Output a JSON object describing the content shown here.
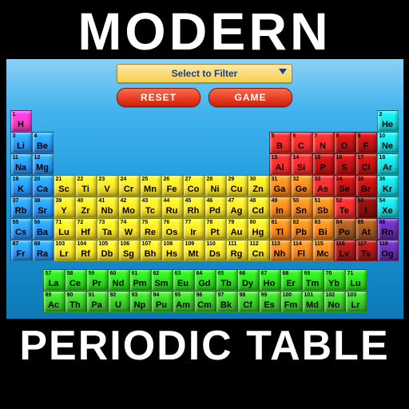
{
  "title_top": "MODERN",
  "title_bottom": "PERIODIC TABLE",
  "controls": {
    "filter_placeholder": "Select to Filter",
    "reset_label": "RESET",
    "game_label": "GAME"
  },
  "colors": {
    "magenta": "#ff39c9",
    "cyan": "#18dfe4",
    "blue": "#2b9bff",
    "yellow": "#ffea28",
    "orange": "#ff8a1f",
    "red": "#ff2d2d",
    "darkred": "#c41313",
    "maroon": "#8a0f0f",
    "brown": "#a55a1e",
    "deepred": "#b01818",
    "green": "#2fe41f",
    "green2": "#3dcf2a",
    "purple": "#6a2fb3"
  },
  "main_grid": {
    "cols": 18,
    "rows": 7,
    "cells": [
      {
        "r": 0,
        "c": 0,
        "n": 1,
        "s": "H",
        "k": "magenta"
      },
      {
        "r": 0,
        "c": 17,
        "n": 2,
        "s": "He",
        "k": "cyan"
      },
      {
        "r": 1,
        "c": 0,
        "n": 3,
        "s": "Li",
        "k": "blue"
      },
      {
        "r": 1,
        "c": 1,
        "n": 4,
        "s": "Be",
        "k": "blue"
      },
      {
        "r": 1,
        "c": 12,
        "n": 5,
        "s": "B",
        "k": "red"
      },
      {
        "r": 1,
        "c": 13,
        "n": 6,
        "s": "C",
        "k": "red"
      },
      {
        "r": 1,
        "c": 14,
        "n": 7,
        "s": "N",
        "k": "red"
      },
      {
        "r": 1,
        "c": 15,
        "n": 8,
        "s": "O",
        "k": "darkred"
      },
      {
        "r": 1,
        "c": 16,
        "n": 9,
        "s": "F",
        "k": "darkred"
      },
      {
        "r": 1,
        "c": 17,
        "n": 10,
        "s": "Ne",
        "k": "cyan"
      },
      {
        "r": 2,
        "c": 0,
        "n": 11,
        "s": "Na",
        "k": "blue"
      },
      {
        "r": 2,
        "c": 1,
        "n": 12,
        "s": "Mg",
        "k": "blue"
      },
      {
        "r": 2,
        "c": 12,
        "n": 13,
        "s": "Al",
        "k": "red"
      },
      {
        "r": 2,
        "c": 13,
        "n": 14,
        "s": "Si",
        "k": "red"
      },
      {
        "r": 2,
        "c": 14,
        "n": 15,
        "s": "P",
        "k": "darkred"
      },
      {
        "r": 2,
        "c": 15,
        "n": 16,
        "s": "S",
        "k": "darkred"
      },
      {
        "r": 2,
        "c": 16,
        "n": 17,
        "s": "Cl",
        "k": "darkred"
      },
      {
        "r": 2,
        "c": 17,
        "n": 18,
        "s": "Ar",
        "k": "cyan"
      },
      {
        "r": 3,
        "c": 0,
        "n": 19,
        "s": "K",
        "k": "blue"
      },
      {
        "r": 3,
        "c": 1,
        "n": 20,
        "s": "Ca",
        "k": "blue"
      },
      {
        "r": 3,
        "c": 2,
        "n": 21,
        "s": "Sc",
        "k": "yellow"
      },
      {
        "r": 3,
        "c": 3,
        "n": 22,
        "s": "Ti",
        "k": "yellow"
      },
      {
        "r": 3,
        "c": 4,
        "n": 23,
        "s": "V",
        "k": "yellow"
      },
      {
        "r": 3,
        "c": 5,
        "n": 24,
        "s": "Cr",
        "k": "yellow"
      },
      {
        "r": 3,
        "c": 6,
        "n": 25,
        "s": "Mn",
        "k": "yellow"
      },
      {
        "r": 3,
        "c": 7,
        "n": 26,
        "s": "Fe",
        "k": "yellow"
      },
      {
        "r": 3,
        "c": 8,
        "n": 27,
        "s": "Co",
        "k": "yellow"
      },
      {
        "r": 3,
        "c": 9,
        "n": 28,
        "s": "Ni",
        "k": "yellow"
      },
      {
        "r": 3,
        "c": 10,
        "n": 29,
        "s": "Cu",
        "k": "yellow"
      },
      {
        "r": 3,
        "c": 11,
        "n": 30,
        "s": "Zn",
        "k": "yellow"
      },
      {
        "r": 3,
        "c": 12,
        "n": 31,
        "s": "Ga",
        "k": "orange"
      },
      {
        "r": 3,
        "c": 13,
        "n": 32,
        "s": "Ge",
        "k": "orange"
      },
      {
        "r": 3,
        "c": 14,
        "n": 33,
        "s": "As",
        "k": "red"
      },
      {
        "r": 3,
        "c": 15,
        "n": 34,
        "s": "Se",
        "k": "darkred"
      },
      {
        "r": 3,
        "c": 16,
        "n": 35,
        "s": "Br",
        "k": "darkred"
      },
      {
        "r": 3,
        "c": 17,
        "n": 36,
        "s": "Kr",
        "k": "cyan"
      },
      {
        "r": 4,
        "c": 0,
        "n": 37,
        "s": "Rb",
        "k": "blue"
      },
      {
        "r": 4,
        "c": 1,
        "n": 38,
        "s": "Sr",
        "k": "blue"
      },
      {
        "r": 4,
        "c": 2,
        "n": 39,
        "s": "Y",
        "k": "yellow"
      },
      {
        "r": 4,
        "c": 3,
        "n": 40,
        "s": "Zr",
        "k": "yellow"
      },
      {
        "r": 4,
        "c": 4,
        "n": 41,
        "s": "Nb",
        "k": "yellow"
      },
      {
        "r": 4,
        "c": 5,
        "n": 42,
        "s": "Mo",
        "k": "yellow"
      },
      {
        "r": 4,
        "c": 6,
        "n": 43,
        "s": "Tc",
        "k": "yellow"
      },
      {
        "r": 4,
        "c": 7,
        "n": 44,
        "s": "Ru",
        "k": "yellow"
      },
      {
        "r": 4,
        "c": 8,
        "n": 45,
        "s": "Rh",
        "k": "yellow"
      },
      {
        "r": 4,
        "c": 9,
        "n": 46,
        "s": "Pd",
        "k": "yellow"
      },
      {
        "r": 4,
        "c": 10,
        "n": 47,
        "s": "Ag",
        "k": "yellow"
      },
      {
        "r": 4,
        "c": 11,
        "n": 48,
        "s": "Cd",
        "k": "yellow"
      },
      {
        "r": 4,
        "c": 12,
        "n": 49,
        "s": "In",
        "k": "orange"
      },
      {
        "r": 4,
        "c": 13,
        "n": 50,
        "s": "Sn",
        "k": "orange"
      },
      {
        "r": 4,
        "c": 14,
        "n": 51,
        "s": "Sb",
        "k": "orange"
      },
      {
        "r": 4,
        "c": 15,
        "n": 52,
        "s": "Te",
        "k": "red"
      },
      {
        "r": 4,
        "c": 16,
        "n": 53,
        "s": "I",
        "k": "maroon"
      },
      {
        "r": 4,
        "c": 17,
        "n": 54,
        "s": "Xe",
        "k": "cyan"
      },
      {
        "r": 5,
        "c": 0,
        "n": 55,
        "s": "Cs",
        "k": "blue"
      },
      {
        "r": 5,
        "c": 1,
        "n": 56,
        "s": "Ba",
        "k": "blue"
      },
      {
        "r": 5,
        "c": 2,
        "n": 71,
        "s": "Lu",
        "k": "yellow"
      },
      {
        "r": 5,
        "c": 3,
        "n": 72,
        "s": "Hf",
        "k": "yellow"
      },
      {
        "r": 5,
        "c": 4,
        "n": 73,
        "s": "Ta",
        "k": "yellow"
      },
      {
        "r": 5,
        "c": 5,
        "n": 74,
        "s": "W",
        "k": "yellow"
      },
      {
        "r": 5,
        "c": 6,
        "n": 75,
        "s": "Re",
        "k": "yellow"
      },
      {
        "r": 5,
        "c": 7,
        "n": 76,
        "s": "Os",
        "k": "yellow"
      },
      {
        "r": 5,
        "c": 8,
        "n": 77,
        "s": "Ir",
        "k": "yellow"
      },
      {
        "r": 5,
        "c": 9,
        "n": 78,
        "s": "Pt",
        "k": "yellow"
      },
      {
        "r": 5,
        "c": 10,
        "n": 79,
        "s": "Au",
        "k": "yellow"
      },
      {
        "r": 5,
        "c": 11,
        "n": 80,
        "s": "Hg",
        "k": "yellow"
      },
      {
        "r": 5,
        "c": 12,
        "n": 81,
        "s": "Tl",
        "k": "orange"
      },
      {
        "r": 5,
        "c": 13,
        "n": 82,
        "s": "Pb",
        "k": "orange"
      },
      {
        "r": 5,
        "c": 14,
        "n": 83,
        "s": "Bi",
        "k": "orange"
      },
      {
        "r": 5,
        "c": 15,
        "n": 84,
        "s": "Po",
        "k": "brown"
      },
      {
        "r": 5,
        "c": 16,
        "n": 85,
        "s": "At",
        "k": "brown"
      },
      {
        "r": 5,
        "c": 17,
        "n": 86,
        "s": "Rn",
        "k": "purple"
      },
      {
        "r": 6,
        "c": 0,
        "n": 87,
        "s": "Fr",
        "k": "blue"
      },
      {
        "r": 6,
        "c": 1,
        "n": 88,
        "s": "Ra",
        "k": "blue"
      },
      {
        "r": 6,
        "c": 2,
        "n": 103,
        "s": "Lr",
        "k": "yellow"
      },
      {
        "r": 6,
        "c": 3,
        "n": 104,
        "s": "Rf",
        "k": "yellow"
      },
      {
        "r": 6,
        "c": 4,
        "n": 105,
        "s": "Db",
        "k": "yellow"
      },
      {
        "r": 6,
        "c": 5,
        "n": 106,
        "s": "Sg",
        "k": "yellow"
      },
      {
        "r": 6,
        "c": 6,
        "n": 107,
        "s": "Bh",
        "k": "yellow"
      },
      {
        "r": 6,
        "c": 7,
        "n": 108,
        "s": "Hs",
        "k": "yellow"
      },
      {
        "r": 6,
        "c": 8,
        "n": 109,
        "s": "Mt",
        "k": "yellow"
      },
      {
        "r": 6,
        "c": 9,
        "n": 110,
        "s": "Ds",
        "k": "yellow"
      },
      {
        "r": 6,
        "c": 10,
        "n": 111,
        "s": "Rg",
        "k": "yellow"
      },
      {
        "r": 6,
        "c": 11,
        "n": 112,
        "s": "Cn",
        "k": "yellow"
      },
      {
        "r": 6,
        "c": 12,
        "n": 113,
        "s": "Nh",
        "k": "orange"
      },
      {
        "r": 6,
        "c": 13,
        "n": 114,
        "s": "Fl",
        "k": "orange"
      },
      {
        "r": 6,
        "c": 14,
        "n": 115,
        "s": "Mc",
        "k": "orange"
      },
      {
        "r": 6,
        "c": 15,
        "n": 116,
        "s": "Lv",
        "k": "deepred"
      },
      {
        "r": 6,
        "c": 16,
        "n": 117,
        "s": "Ts",
        "k": "deepred"
      },
      {
        "r": 6,
        "c": 17,
        "n": 118,
        "s": "Og",
        "k": "purple"
      }
    ]
  },
  "rare_grid": {
    "cols": 15,
    "rows": 2,
    "cells": [
      {
        "r": 0,
        "c": 0,
        "n": 57,
        "s": "La",
        "k": "green"
      },
      {
        "r": 0,
        "c": 1,
        "n": 58,
        "s": "Ce",
        "k": "green"
      },
      {
        "r": 0,
        "c": 2,
        "n": 59,
        "s": "Pr",
        "k": "green"
      },
      {
        "r": 0,
        "c": 3,
        "n": 60,
        "s": "Nd",
        "k": "green"
      },
      {
        "r": 0,
        "c": 4,
        "n": 61,
        "s": "Pm",
        "k": "green"
      },
      {
        "r": 0,
        "c": 5,
        "n": 62,
        "s": "Sm",
        "k": "green"
      },
      {
        "r": 0,
        "c": 6,
        "n": 63,
        "s": "Eu",
        "k": "green"
      },
      {
        "r": 0,
        "c": 7,
        "n": 64,
        "s": "Gd",
        "k": "green"
      },
      {
        "r": 0,
        "c": 8,
        "n": 65,
        "s": "Tb",
        "k": "green"
      },
      {
        "r": 0,
        "c": 9,
        "n": 66,
        "s": "Dy",
        "k": "green"
      },
      {
        "r": 0,
        "c": 10,
        "n": 67,
        "s": "Ho",
        "k": "green"
      },
      {
        "r": 0,
        "c": 11,
        "n": 68,
        "s": "Er",
        "k": "green"
      },
      {
        "r": 0,
        "c": 12,
        "n": 69,
        "s": "Tm",
        "k": "green"
      },
      {
        "r": 0,
        "c": 13,
        "n": 70,
        "s": "Yb",
        "k": "green"
      },
      {
        "r": 0,
        "c": 14,
        "n": 71,
        "s": "Lu",
        "k": "green"
      },
      {
        "r": 1,
        "c": 0,
        "n": 89,
        "s": "Ac",
        "k": "green2"
      },
      {
        "r": 1,
        "c": 1,
        "n": 90,
        "s": "Th",
        "k": "green2"
      },
      {
        "r": 1,
        "c": 2,
        "n": 91,
        "s": "Pa",
        "k": "green2"
      },
      {
        "r": 1,
        "c": 3,
        "n": 92,
        "s": "U",
        "k": "green2"
      },
      {
        "r": 1,
        "c": 4,
        "n": 93,
        "s": "Np",
        "k": "green2"
      },
      {
        "r": 1,
        "c": 5,
        "n": 94,
        "s": "Pu",
        "k": "green2"
      },
      {
        "r": 1,
        "c": 6,
        "n": 95,
        "s": "Am",
        "k": "green2"
      },
      {
        "r": 1,
        "c": 7,
        "n": 96,
        "s": "Cm",
        "k": "green2"
      },
      {
        "r": 1,
        "c": 8,
        "n": 97,
        "s": "Bk",
        "k": "green2"
      },
      {
        "r": 1,
        "c": 9,
        "n": 98,
        "s": "Cf",
        "k": "green2"
      },
      {
        "r": 1,
        "c": 10,
        "n": 99,
        "s": "Es",
        "k": "green2"
      },
      {
        "r": 1,
        "c": 11,
        "n": 100,
        "s": "Fm",
        "k": "green2"
      },
      {
        "r": 1,
        "c": 12,
        "n": 101,
        "s": "Md",
        "k": "green2"
      },
      {
        "r": 1,
        "c": 13,
        "n": 102,
        "s": "No",
        "k": "green2"
      },
      {
        "r": 1,
        "c": 14,
        "n": 103,
        "s": "Lr",
        "k": "green2"
      }
    ]
  }
}
